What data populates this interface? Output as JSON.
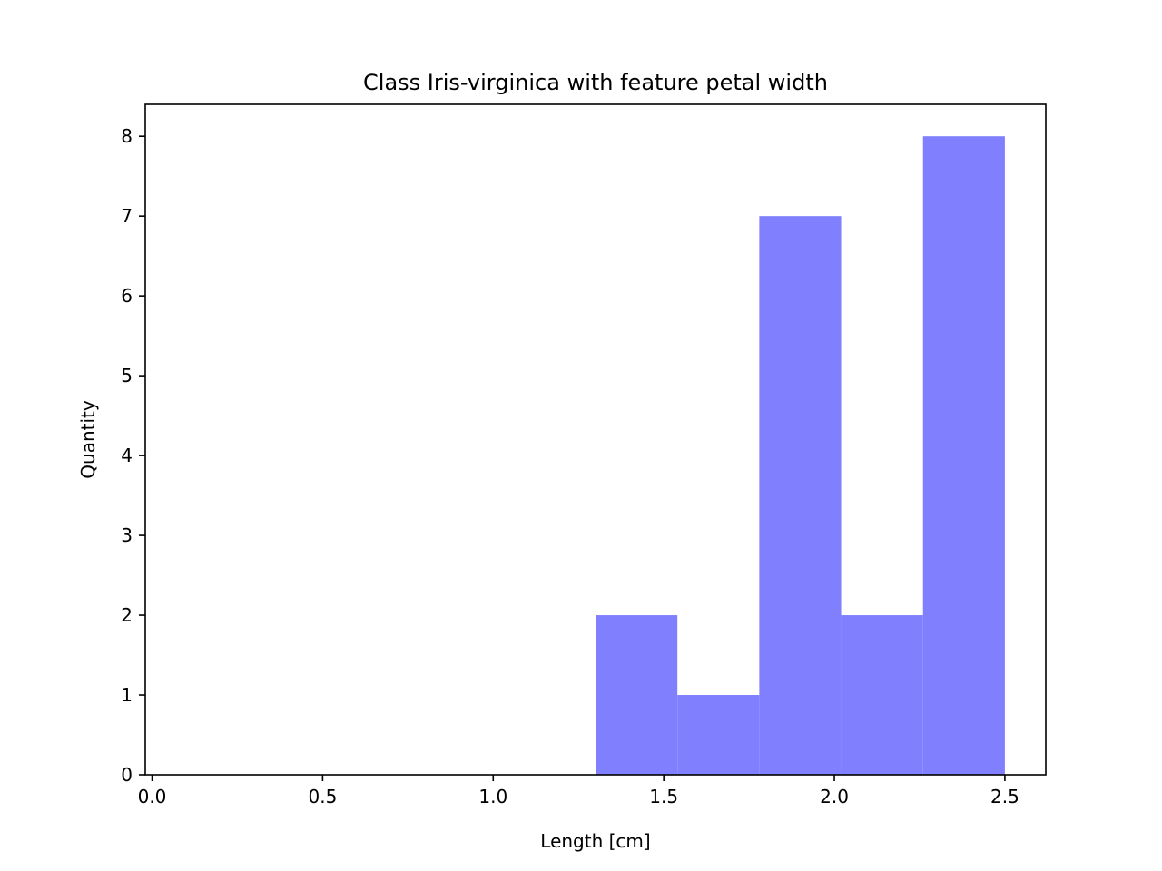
{
  "chart_data": {
    "type": "bar",
    "title": "Class Iris-virginica with feature petal width",
    "xlabel": "Length [cm]",
    "ylabel": "Quantity",
    "xlim": [
      -0.02,
      2.62
    ],
    "ylim": [
      0,
      8.4
    ],
    "x_ticks": [
      "0.0",
      "0.5",
      "1.0",
      "1.5",
      "2.0",
      "2.5"
    ],
    "y_ticks": [
      "0",
      "1",
      "2",
      "3",
      "4",
      "5",
      "6",
      "7",
      "8"
    ],
    "bins": [
      {
        "start": 1.3,
        "end": 1.54,
        "value": 2
      },
      {
        "start": 1.54,
        "end": 1.78,
        "value": 1
      },
      {
        "start": 1.78,
        "end": 2.02,
        "value": 7
      },
      {
        "start": 2.02,
        "end": 2.26,
        "value": 2
      },
      {
        "start": 2.26,
        "end": 2.5,
        "value": 8
      }
    ],
    "bar_color": "#8080ff",
    "grid": false,
    "legend": "none"
  }
}
